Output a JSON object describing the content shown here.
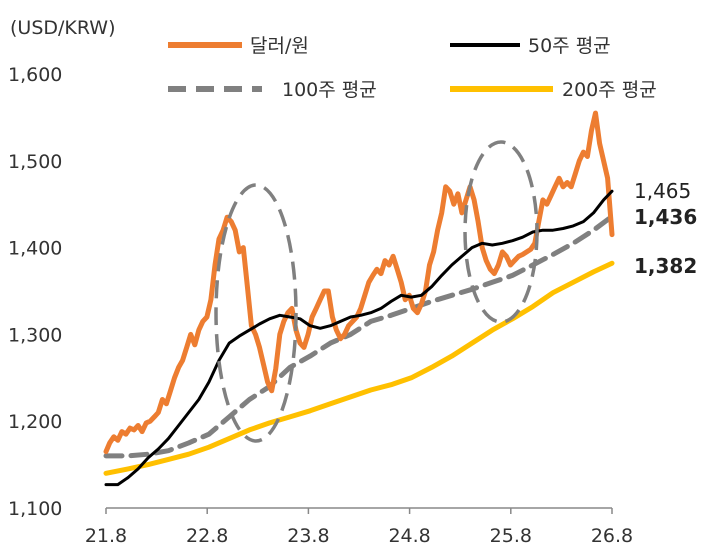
{
  "chart_data": {
    "type": "line",
    "unit_label": "(USD/KRW)",
    "ylim": [
      1100,
      1600
    ],
    "y_ticks": [
      "1,100",
      "1,200",
      "1,300",
      "1,400",
      "1,500",
      "1,600"
    ],
    "y_tick_values": [
      1100,
      1200,
      1300,
      1400,
      1500,
      1600
    ],
    "x_ticks": [
      "21.8",
      "22.8",
      "23.8",
      "24.8",
      "25.8",
      "26.8"
    ],
    "x_tick_values": [
      2021.583,
      2022.583,
      2023.583,
      2024.583,
      2025.583,
      2026.583
    ],
    "xlim": [
      2021.583,
      2026.583
    ],
    "grid": false,
    "legend_position": "top",
    "colors": {
      "spot": "#ED7D31",
      "ma50": "#000000",
      "ma100": "#808080",
      "ma200": "#FFC000",
      "highlight": "#808080"
    },
    "series": [
      {
        "name": "달러/원",
        "style": "solid",
        "x": [
          2021.583,
          2021.62,
          2021.66,
          2021.7,
          2021.74,
          2021.78,
          2021.82,
          2021.86,
          2021.9,
          2021.94,
          2021.98,
          2022.02,
          2022.06,
          2022.1,
          2022.14,
          2022.18,
          2022.22,
          2022.26,
          2022.3,
          2022.34,
          2022.38,
          2022.42,
          2022.46,
          2022.5,
          2022.54,
          2022.58,
          2022.62,
          2022.66,
          2022.7,
          2022.74,
          2022.78,
          2022.82,
          2022.86,
          2022.9,
          2022.94,
          2022.98,
          2023.02,
          2023.06,
          2023.1,
          2023.14,
          2023.18,
          2023.22,
          2023.26,
          2023.3,
          2023.34,
          2023.38,
          2023.42,
          2023.46,
          2023.5,
          2023.54,
          2023.58,
          2023.62,
          2023.66,
          2023.7,
          2023.74,
          2023.78,
          2023.82,
          2023.86,
          2023.9,
          2023.94,
          2023.98,
          2024.02,
          2024.06,
          2024.1,
          2024.14,
          2024.18,
          2024.22,
          2024.26,
          2024.3,
          2024.34,
          2024.38,
          2024.42,
          2024.46,
          2024.5,
          2024.54,
          2024.58,
          2024.62,
          2024.66,
          2024.7,
          2024.74,
          2024.78,
          2024.82,
          2024.86,
          2024.9,
          2024.94,
          2024.98,
          2025.02,
          2025.06,
          2025.1,
          2025.14,
          2025.18,
          2025.22,
          2025.26,
          2025.3,
          2025.34,
          2025.38,
          2025.42,
          2025.46,
          2025.5,
          2025.54,
          2025.58,
          2025.62,
          2025.66,
          2025.7,
          2025.74,
          2025.78,
          2025.82,
          2025.86,
          2025.9,
          2025.94,
          2025.98,
          2026.02,
          2026.06,
          2026.1,
          2026.14,
          2026.18,
          2026.22,
          2026.26,
          2026.3,
          2026.34,
          2026.38,
          2026.42,
          2026.46,
          2026.5,
          2026.54,
          2026.583
        ],
        "values": [
          1165,
          1175,
          1182,
          1178,
          1188,
          1185,
          1192,
          1190,
          1195,
          1188,
          1198,
          1200,
          1205,
          1210,
          1225,
          1220,
          1235,
          1250,
          1262,
          1270,
          1285,
          1300,
          1288,
          1305,
          1315,
          1320,
          1340,
          1380,
          1410,
          1420,
          1435,
          1430,
          1420,
          1395,
          1400,
          1355,
          1310,
          1300,
          1285,
          1265,
          1245,
          1235,
          1260,
          1300,
          1315,
          1325,
          1330,
          1305,
          1290,
          1285,
          1300,
          1320,
          1330,
          1340,
          1350,
          1350,
          1320,
          1305,
          1295,
          1300,
          1310,
          1315,
          1320,
          1330,
          1345,
          1360,
          1368,
          1375,
          1370,
          1385,
          1380,
          1390,
          1375,
          1360,
          1340,
          1345,
          1330,
          1325,
          1335,
          1350,
          1380,
          1395,
          1420,
          1440,
          1470,
          1465,
          1450,
          1462,
          1440,
          1455,
          1470,
          1455,
          1430,
          1400,
          1385,
          1375,
          1370,
          1380,
          1395,
          1390,
          1380,
          1385,
          1390,
          1392,
          1395,
          1398,
          1405,
          1430,
          1455,
          1450,
          1460,
          1470,
          1480,
          1470,
          1475,
          1470,
          1485,
          1500,
          1510,
          1505,
          1535,
          1555,
          1520,
          1500,
          1480,
          1415
        ]
      },
      {
        "name": "50주 평균",
        "style": "solid",
        "x": [
          2021.583,
          2021.7,
          2021.8,
          2021.9,
          2022.0,
          2022.1,
          2022.2,
          2022.3,
          2022.4,
          2022.5,
          2022.6,
          2022.7,
          2022.8,
          2022.9,
          2023.0,
          2023.1,
          2023.2,
          2023.3,
          2023.4,
          2023.5,
          2023.6,
          2023.7,
          2023.8,
          2023.9,
          2024.0,
          2024.1,
          2024.2,
          2024.3,
          2024.4,
          2024.5,
          2024.6,
          2024.7,
          2024.8,
          2024.9,
          2025.0,
          2025.1,
          2025.2,
          2025.3,
          2025.4,
          2025.5,
          2025.6,
          2025.7,
          2025.8,
          2025.9,
          2026.0,
          2026.1,
          2026.2,
          2026.3,
          2026.4,
          2026.5,
          2026.583
        ],
        "values": [
          1127,
          1127,
          1135,
          1145,
          1158,
          1168,
          1180,
          1195,
          1210,
          1225,
          1245,
          1270,
          1290,
          1298,
          1305,
          1312,
          1318,
          1322,
          1320,
          1318,
          1310,
          1307,
          1310,
          1315,
          1320,
          1322,
          1325,
          1330,
          1338,
          1345,
          1343,
          1345,
          1355,
          1368,
          1380,
          1390,
          1400,
          1405,
          1403,
          1405,
          1408,
          1412,
          1418,
          1420,
          1420,
          1422,
          1425,
          1430,
          1440,
          1455,
          1465
        ]
      },
      {
        "name": "100주 평균",
        "style": "dashed",
        "x": [
          2021.583,
          2021.8,
          2022.0,
          2022.2,
          2022.4,
          2022.6,
          2022.8,
          2023.0,
          2023.2,
          2023.4,
          2023.6,
          2023.8,
          2024.0,
          2024.2,
          2024.4,
          2024.6,
          2024.8,
          2025.0,
          2025.2,
          2025.4,
          2025.6,
          2025.8,
          2026.0,
          2026.2,
          2026.4,
          2026.583
        ],
        "values": [
          1160,
          1160,
          1162,
          1166,
          1175,
          1185,
          1205,
          1225,
          1240,
          1262,
          1275,
          1290,
          1300,
          1315,
          1322,
          1330,
          1338,
          1345,
          1352,
          1360,
          1368,
          1380,
          1392,
          1405,
          1420,
          1436
        ]
      },
      {
        "name": "200주 평균",
        "style": "solid",
        "x": [
          2021.583,
          2021.8,
          2022.0,
          2022.2,
          2022.4,
          2022.6,
          2022.8,
          2023.0,
          2023.2,
          2023.4,
          2023.6,
          2023.8,
          2024.0,
          2024.2,
          2024.4,
          2024.6,
          2024.8,
          2025.0,
          2025.2,
          2025.4,
          2025.6,
          2025.8,
          2026.0,
          2026.2,
          2026.4,
          2026.583
        ],
        "values": [
          1140,
          1145,
          1150,
          1156,
          1162,
          1170,
          1180,
          1190,
          1198,
          1205,
          1212,
          1220,
          1228,
          1236,
          1242,
          1250,
          1262,
          1275,
          1290,
          1305,
          1318,
          1332,
          1348,
          1360,
          1372,
          1382
        ]
      }
    ],
    "end_labels": [
      {
        "text": "1,465",
        "series": "50주 평균",
        "bold": false
      },
      {
        "text": "1,436",
        "series": "100주 평균",
        "bold": true
      },
      {
        "text": "1,382",
        "series": "200주 평균",
        "bold": true
      }
    ]
  }
}
